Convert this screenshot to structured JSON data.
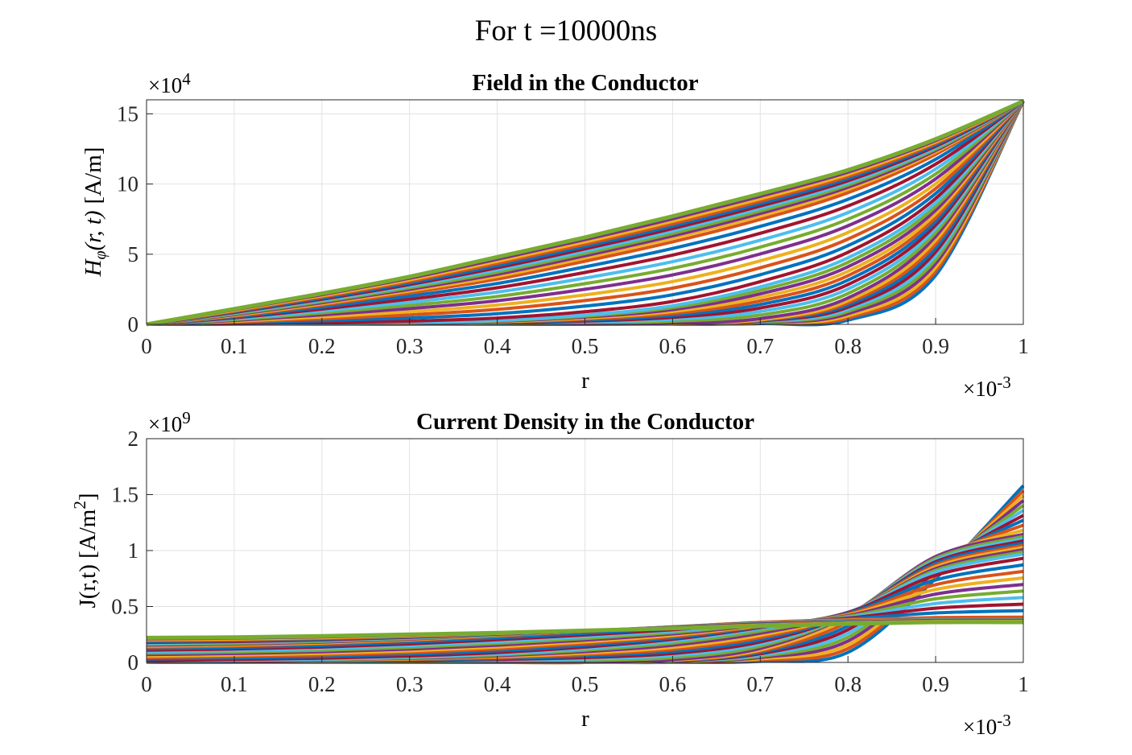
{
  "figure": {
    "suptitle": "For t =10000ns"
  },
  "colors": [
    "#0072BD",
    "#D95319",
    "#EDB120",
    "#7E2F8E",
    "#77AC30",
    "#4DBEEE",
    "#A2142F"
  ],
  "chart_data": [
    {
      "type": "line",
      "title": "Field in the Conductor",
      "xlabel": "r",
      "ylabel_text": "H",
      "ylabel_sub": "φ",
      "ylabel_args": "(r, t)",
      "ylabel_units": "[A/m]",
      "x_exponent_base": "×10",
      "x_exponent_power": "-3",
      "y_exponent_base": "×10",
      "y_exponent_power": "4",
      "xlim": [
        0,
        1
      ],
      "ylim": [
        0,
        16
      ],
      "xticks": [
        "0",
        "0.1",
        "0.2",
        "0.3",
        "0.4",
        "0.5",
        "0.6",
        "0.7",
        "0.8",
        "0.9",
        "1"
      ],
      "yticks": [
        "0",
        "5",
        "10",
        "15"
      ],
      "ytick_values": [
        0,
        5,
        10,
        15
      ],
      "grid": true,
      "series_count": 40,
      "series_description": "Family of curves H(r) = 15.9*(r^2 blended toward sharp near-surface profile); first (blue) curve is steepest near r=1, last (yellow) approaches linear",
      "x": [
        0,
        0.1,
        0.2,
        0.3,
        0.4,
        0.5,
        0.6,
        0.7,
        0.8,
        0.9,
        1.0
      ],
      "series": [
        {
          "values": [
            0,
            0,
            0,
            0,
            0,
            0,
            0,
            0.05,
            0.3,
            3.5,
            15.9
          ]
        },
        {
          "values": [
            0,
            0,
            0,
            0,
            0,
            0,
            0.05,
            0.35,
            1.8,
            6.2,
            15.9
          ]
        },
        {
          "values": [
            0,
            0.01,
            0.05,
            0.12,
            0.3,
            0.7,
            1.4,
            2.8,
            4.9,
            8.8,
            15.9
          ]
        },
        {
          "values": [
            0,
            0.6,
            1.4,
            2.3,
            3.3,
            4.6,
            6.0,
            7.6,
            9.5,
            12.2,
            15.9
          ]
        },
        {
          "values": [
            0,
            1.1,
            2.2,
            3.4,
            4.8,
            6.2,
            7.7,
            9.3,
            11.0,
            13.2,
            15.9
          ]
        }
      ]
    },
    {
      "type": "line",
      "title": "Current Density in the Conductor",
      "xlabel": "r",
      "ylabel_prefix": "J(r,t) [A/m",
      "ylabel_power": "2",
      "ylabel_suffix": "]",
      "x_exponent_base": "×10",
      "x_exponent_power": "-3",
      "y_exponent_base": "×10",
      "y_exponent_power": "9",
      "xlim": [
        0,
        1
      ],
      "ylim": [
        0,
        2
      ],
      "xticks": [
        "0",
        "0.1",
        "0.2",
        "0.3",
        "0.4",
        "0.5",
        "0.6",
        "0.7",
        "0.8",
        "0.9",
        "1"
      ],
      "yticks": [
        "0",
        "0.5",
        "1",
        "1.5",
        "2"
      ],
      "ytick_values": [
        0,
        0.5,
        1,
        1.5,
        2
      ],
      "grid": true,
      "series_count": 40,
      "x": [
        0,
        0.1,
        0.2,
        0.3,
        0.4,
        0.5,
        0.6,
        0.7,
        0.8,
        0.9,
        1.0
      ],
      "series": [
        {
          "values": [
            0,
            0,
            0,
            0,
            0,
            0,
            0,
            0.01,
            0.09,
            0.75,
            1.58
          ]
        },
        {
          "values": [
            0,
            0,
            0,
            0,
            0,
            0,
            0.02,
            0.12,
            0.42,
            0.95,
            1.15
          ]
        },
        {
          "values": [
            0.01,
            0.02,
            0.03,
            0.05,
            0.08,
            0.13,
            0.2,
            0.31,
            0.45,
            0.8,
            0.96
          ]
        },
        {
          "values": [
            0.14,
            0.15,
            0.17,
            0.2,
            0.24,
            0.28,
            0.32,
            0.36,
            0.38,
            0.39,
            0.39
          ]
        },
        {
          "values": [
            0.22,
            0.225,
            0.235,
            0.25,
            0.265,
            0.285,
            0.305,
            0.325,
            0.345,
            0.36,
            0.36
          ]
        }
      ]
    }
  ]
}
